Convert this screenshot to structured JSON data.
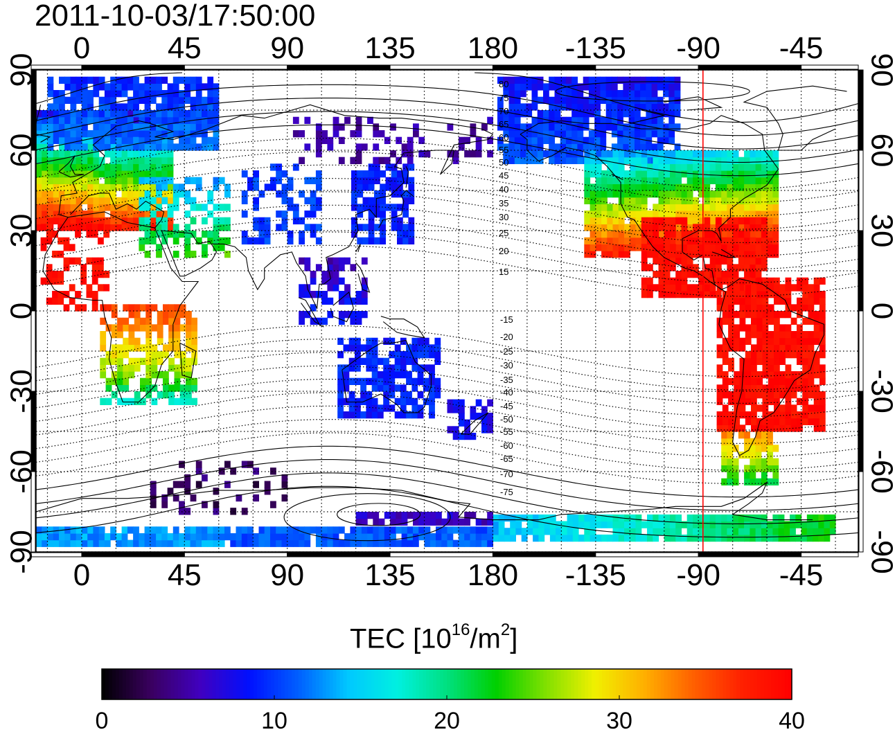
{
  "title": "2011-10-03/17:50:00",
  "map": {
    "top_longitude_labels": [
      "0",
      "45",
      "90",
      "135",
      "180",
      "-135",
      "-90",
      "-45"
    ],
    "bottom_longitude_labels": [
      "0",
      "45",
      "90",
      "135",
      "180",
      "-135",
      "-90",
      "-45"
    ],
    "left_latitude_labels": [
      "90",
      "60",
      "30",
      "0",
      "-30",
      "-60",
      "-90"
    ],
    "right_latitude_labels": [
      "90",
      "60",
      "30",
      "0",
      "-30",
      "-60",
      "-90"
    ],
    "longitude_range": [
      -20,
      340
    ],
    "latitude_range": [
      -90,
      90
    ],
    "contour_labels_north": [
      "80",
      "75",
      "70",
      "65",
      "60",
      "55",
      "50",
      "45",
      "40",
      "35",
      "30",
      "25",
      "20",
      "15"
    ],
    "contour_labels_south": [
      "-15",
      "-20",
      "-25",
      "-30",
      "-35",
      "-40",
      "-45",
      "-50",
      "-55",
      "-60",
      "-65",
      "-70",
      "-75"
    ],
    "marker_line": {
      "longitude": -88,
      "color": "#ff0000"
    },
    "grid": "dotted"
  },
  "colorbar": {
    "title_prefix": "TEC  [10",
    "title_exp1": "16",
    "title_mid": "/m",
    "title_exp2": "2",
    "title_suffix": "]",
    "min": 0,
    "max": 40,
    "tick_labels": [
      "0",
      "10",
      "20",
      "30",
      "40"
    ],
    "colormap": [
      "#000000",
      "#3a0060",
      "#4000c0",
      "#0010ff",
      "#0060ff",
      "#00c8ff",
      "#00f0e0",
      "#00e080",
      "#00d000",
      "#80e000",
      "#f0f000",
      "#ffb000",
      "#ff6000",
      "#ff2000",
      "#ff0000"
    ]
  }
}
